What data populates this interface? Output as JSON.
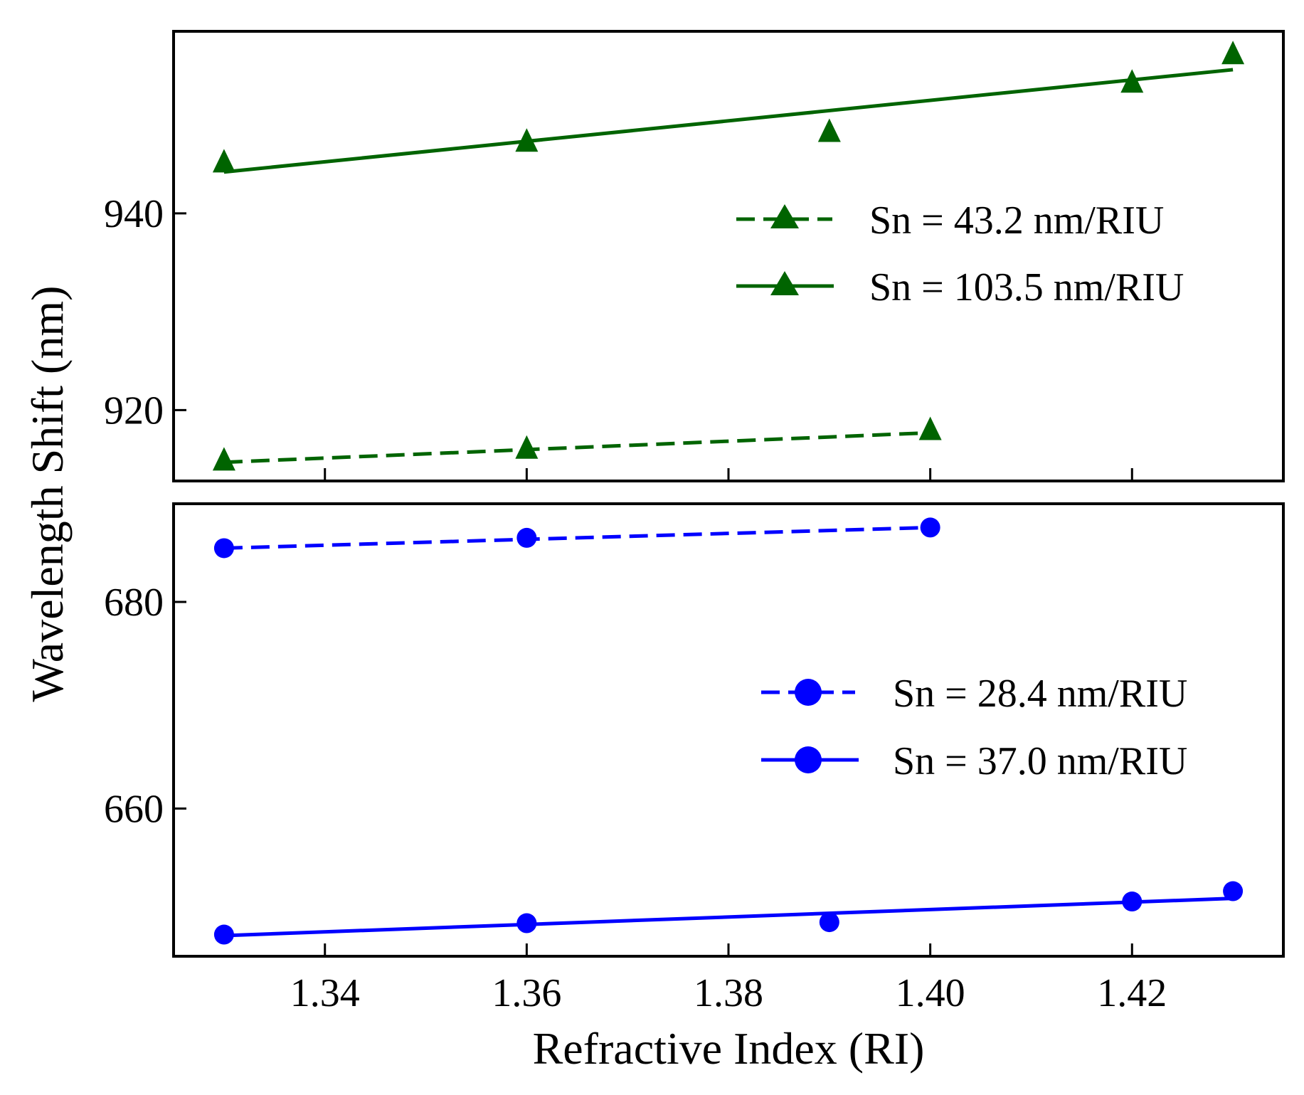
{
  "chart_data": [
    {
      "type": "line",
      "panel": "top",
      "xlim": [
        1.325,
        1.435
      ],
      "ylim": [
        912.8,
        958.5
      ],
      "yticks": [
        920,
        940
      ],
      "ytick_labels": [
        "920",
        "940"
      ],
      "xticks": [
        1.34,
        1.36,
        1.38,
        1.4,
        1.42
      ],
      "series": [
        {
          "name": "Sn = 43.2 nm/RIU",
          "color": "#006400",
          "line": "dashed",
          "marker": "triangle",
          "x": [
            1.33,
            1.36,
            1.4
          ],
          "y": [
            914.8,
            916.0,
            917.9
          ],
          "fit": {
            "x": [
              1.33,
              1.4
            ],
            "y": [
              914.7,
              917.7
            ]
          }
        },
        {
          "name": "Sn = 103.5 nm/RIU",
          "color": "#006400",
          "line": "solid",
          "marker": "triangle",
          "x": [
            1.33,
            1.36,
            1.39,
            1.42,
            1.43
          ],
          "y": [
            945.1,
            947.2,
            948.2,
            953.2,
            956.1
          ],
          "fit": {
            "x": [
              1.33,
              1.43
            ],
            "y": [
              944.2,
              954.6
            ]
          }
        }
      ]
    },
    {
      "type": "line",
      "panel": "bottom",
      "xlim": [
        1.325,
        1.435
      ],
      "ylim": [
        645.7,
        689.5
      ],
      "yticks": [
        660,
        680
      ],
      "ytick_labels": [
        "660",
        "680"
      ],
      "xticks": [
        1.34,
        1.36,
        1.38,
        1.4,
        1.42
      ],
      "xtick_labels": [
        "1.34",
        "1.36",
        "1.38",
        "1.40",
        "1.42"
      ],
      "xlabel": "Refractive Index (RI)",
      "series": [
        {
          "name": "Sn = 28.4 nm/RIU",
          "color": "#0000ff",
          "line": "dashed",
          "marker": "circle",
          "x": [
            1.33,
            1.36,
            1.4
          ],
          "y": [
            685.2,
            686.2,
            687.2
          ],
          "fit": {
            "x": [
              1.33,
              1.4
            ],
            "y": [
              685.2,
              687.2
            ]
          }
        },
        {
          "name": "Sn = 37.0 nm/RIU",
          "color": "#0000ff",
          "line": "solid",
          "marker": "circle",
          "x": [
            1.33,
            1.36,
            1.39,
            1.42,
            1.43
          ],
          "y": [
            647.8,
            648.9,
            649.0,
            651.0,
            652.0
          ],
          "fit": {
            "x": [
              1.33,
              1.43
            ],
            "y": [
              647.7,
              651.3
            ]
          }
        }
      ]
    }
  ],
  "ylabel": "Wavelength Shift (nm)"
}
